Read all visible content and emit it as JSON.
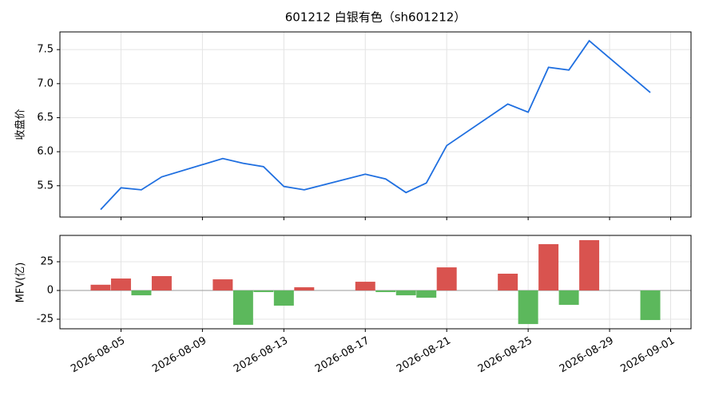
{
  "chart_data": [
    {
      "type": "line",
      "title": "601212 白银有色（sh601212）",
      "y_label": "收盘价",
      "x": [
        "2026-08-04",
        "2026-08-05",
        "2026-08-06",
        "2026-08-07",
        "2026-08-10",
        "2026-08-11",
        "2026-08-12",
        "2026-08-13",
        "2026-08-14",
        "2026-08-17",
        "2026-08-18",
        "2026-08-19",
        "2026-08-20",
        "2026-08-21",
        "2026-08-24",
        "2026-08-25",
        "2026-08-26",
        "2026-08-27",
        "2026-08-28",
        "2026-08-31"
      ],
      "values": [
        5.15,
        5.47,
        5.44,
        5.63,
        5.9,
        5.83,
        5.78,
        5.49,
        5.44,
        5.67,
        5.6,
        5.4,
        5.54,
        6.09,
        6.7,
        6.58,
        7.24,
        7.2,
        7.63,
        6.87
      ],
      "color": "#1f6fe0",
      "xlim": [
        "2026-08-02",
        "2026-09-02"
      ],
      "ylim": [
        5.04,
        7.76
      ],
      "yticks": [
        5.5,
        {
          "value": 6,
          "label": "6.0"
        },
        6.5,
        {
          "value": 7,
          "label": "7.0"
        },
        7.5
      ],
      "grid": true
    },
    {
      "type": "bar",
      "y_label": "MFV(亿)",
      "x": [
        "2026-08-04",
        "2026-08-05",
        "2026-08-06",
        "2026-08-07",
        "2026-08-10",
        "2026-08-11",
        "2026-08-12",
        "2026-08-13",
        "2026-08-14",
        "2026-08-17",
        "2026-08-18",
        "2026-08-19",
        "2026-08-20",
        "2026-08-21",
        "2026-08-24",
        "2026-08-25",
        "2026-08-26",
        "2026-08-27",
        "2026-08-28",
        "2026-08-31"
      ],
      "values": [
        5,
        10.4,
        -4.2,
        12.5,
        9.7,
        -29.9,
        -1.4,
        -13.2,
        2.8,
        7.6,
        -1.4,
        -4.2,
        -6.3,
        20.1,
        14.6,
        -29.2,
        40.3,
        -12.5,
        43.8,
        -25.7
      ],
      "up_color": "#d9534f",
      "down_color": "#5cb85c",
      "xlim": [
        "2026-08-02",
        "2026-09-02"
      ],
      "ylim": [
        -33.3,
        47.9
      ],
      "yticks": [
        -25,
        0,
        25
      ],
      "xticks": [
        "2026-08-05",
        "2026-08-09",
        "2026-08-13",
        "2026-08-17",
        "2026-08-21",
        "2026-08-25",
        "2026-08-29",
        "2026-09-01"
      ],
      "grid": true
    }
  ]
}
